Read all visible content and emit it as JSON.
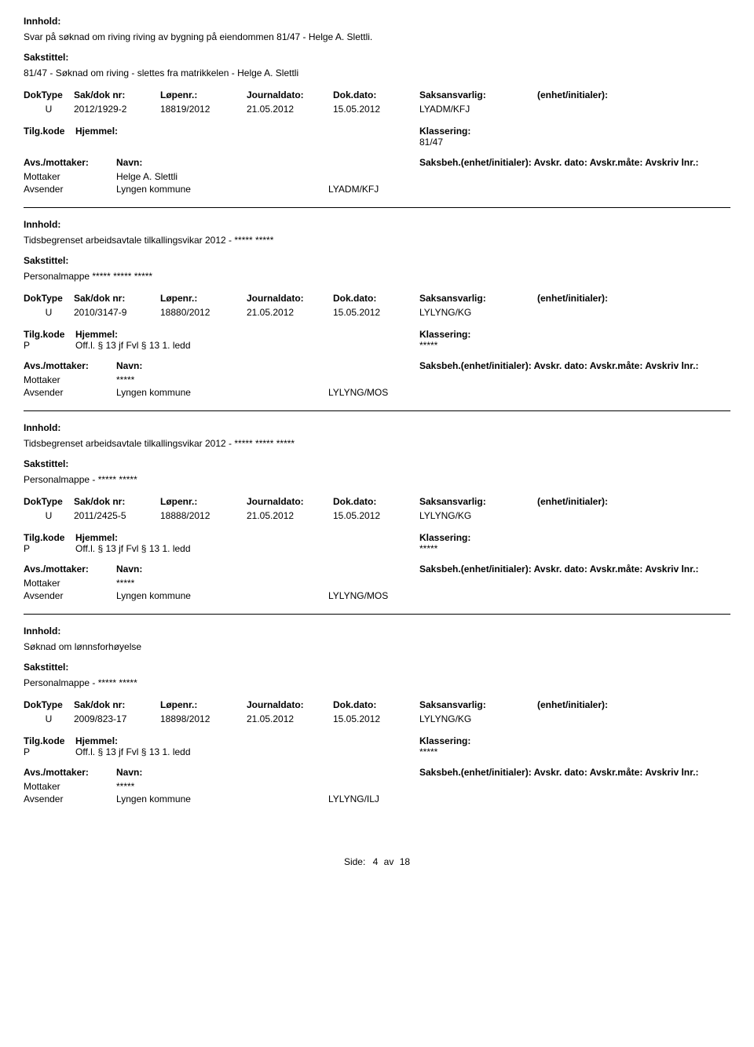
{
  "labels": {
    "innhold": "Innhold:",
    "sakstittel": "Sakstittel:",
    "doktype": "DokType",
    "sakdok": "Sak/dok nr:",
    "lopenr": "Løpenr.:",
    "journaldato": "Journaldato:",
    "dokdato": "Dok.dato:",
    "saksansvarlig": "Saksansvarlig:",
    "enhet": "(enhet/initialer):",
    "tilgkode": "Tilg.kode",
    "hjemmel": "Hjemmel:",
    "klassering": "Klassering:",
    "avs_mottaker": "Avs./mottaker:",
    "navn": "Navn:",
    "saksbeh_full": "Saksbeh.(enhet/initialer): Avskr. dato: Avskr.måte: Avskriv lnr.:",
    "mottaker": "Mottaker",
    "avsender": "Avsender",
    "side": "Side:",
    "av": "av"
  },
  "footer": {
    "page": "4",
    "total": "18"
  },
  "records": [
    {
      "innhold": "Svar på  søknad om riving riving av bygning på eiendommen 81/47  - Helge A. Slettli.",
      "sakstittel": "81/47 - Søknad om riving - slettes fra matrikkelen - Helge A. Slettli",
      "doktype": "U",
      "sakdok": "2012/1929-2",
      "lopenr": "18819/2012",
      "journaldato": "21.05.2012",
      "dokdato": "15.05.2012",
      "saksansvarlig": "LYADM/KFJ",
      "tilgkode": "",
      "hjemmel": "",
      "klassering": "81/47",
      "parties": [
        {
          "role": "Mottaker",
          "name": "Helge A. Slettli",
          "beh": ""
        },
        {
          "role": "Avsender",
          "name": "Lyngen kommune",
          "beh": "LYADM/KFJ"
        }
      ]
    },
    {
      "innhold": "Tidsbegrenset arbeidsavtale tilkallingsvikar 2012 - ***** *****",
      "sakstittel": "Personalmappe ***** ***** *****",
      "doktype": "U",
      "sakdok": "2010/3147-9",
      "lopenr": "18880/2012",
      "journaldato": "21.05.2012",
      "dokdato": "15.05.2012",
      "saksansvarlig": "LYLYNG/KG",
      "tilgkode": "P",
      "hjemmel": "Off.l. § 13 jf Fvl § 13 1. ledd",
      "klassering": "*****",
      "parties": [
        {
          "role": "Mottaker",
          "name": "*****",
          "beh": ""
        },
        {
          "role": "Avsender",
          "name": "Lyngen kommune",
          "beh": "LYLYNG/MOS"
        }
      ]
    },
    {
      "innhold": "Tidsbegrenset arbeidsavtale tilkallingsvikar 2012 - ***** ***** *****",
      "sakstittel": "Personalmappe - ***** *****",
      "doktype": "U",
      "sakdok": "2011/2425-5",
      "lopenr": "18888/2012",
      "journaldato": "21.05.2012",
      "dokdato": "15.05.2012",
      "saksansvarlig": "LYLYNG/KG",
      "tilgkode": "P",
      "hjemmel": "Off.l. § 13 jf Fvl § 13 1. ledd",
      "klassering": "*****",
      "parties": [
        {
          "role": "Mottaker",
          "name": "*****",
          "beh": ""
        },
        {
          "role": "Avsender",
          "name": "Lyngen kommune",
          "beh": "LYLYNG/MOS"
        }
      ]
    },
    {
      "innhold": "Søknad om lønnsforhøyelse",
      "sakstittel": "Personalmappe - ***** *****",
      "doktype": "U",
      "sakdok": "2009/823-17",
      "lopenr": "18898/2012",
      "journaldato": "21.05.2012",
      "dokdato": "15.05.2012",
      "saksansvarlig": "LYLYNG/KG",
      "tilgkode": "P",
      "hjemmel": "Off.l. § 13 jf Fvl § 13 1. ledd",
      "klassering": "*****",
      "parties": [
        {
          "role": "Mottaker",
          "name": "*****",
          "beh": ""
        },
        {
          "role": "Avsender",
          "name": "Lyngen kommune",
          "beh": "LYLYNG/ILJ"
        }
      ]
    }
  ]
}
